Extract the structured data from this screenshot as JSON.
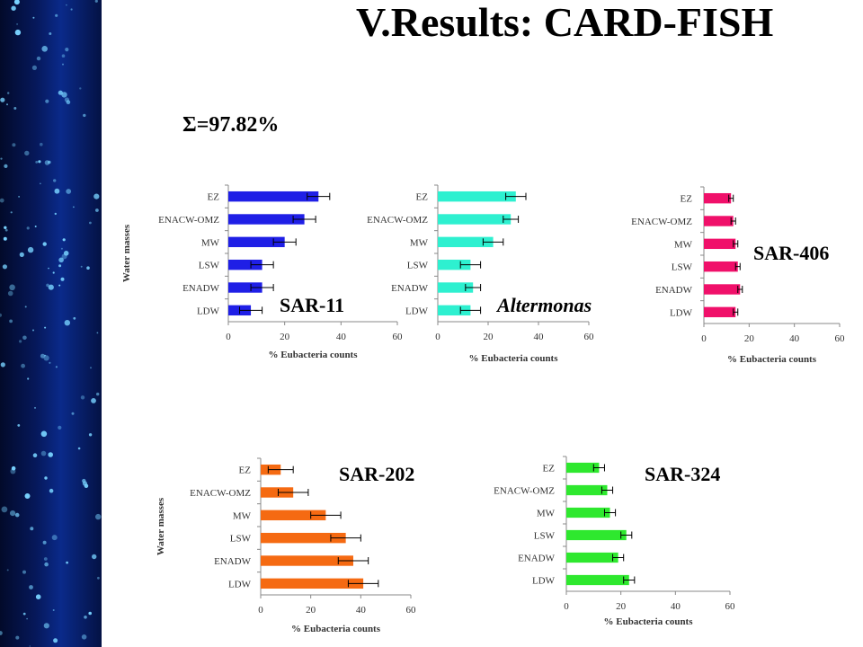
{
  "slide": {
    "title": "V.Results: CARD-FISH",
    "sum_label": "Σ=97.82%"
  },
  "chart_data": [
    {
      "type": "bar",
      "orientation": "horizontal",
      "name": "SAR-11",
      "categories": [
        "EZ",
        "ENACW-OMZ",
        "MW",
        "LSW",
        "ENADW",
        "LDW"
      ],
      "values": [
        32,
        27,
        20,
        12,
        12,
        8
      ],
      "errors": [
        4,
        4,
        4,
        4,
        4,
        4
      ],
      "xlabel": "% Eubacteria counts",
      "ylabel": "Water masses",
      "xlim": [
        0,
        60
      ],
      "xticks": [
        "0",
        "20",
        "40",
        "60"
      ],
      "color": "#1f1fe6",
      "label_color": "#000000",
      "label_italic": false
    },
    {
      "type": "bar",
      "orientation": "horizontal",
      "name": "Altermonas",
      "categories": [
        "EZ",
        "ENACW-OMZ",
        "MW",
        "LSW",
        "ENADW",
        "LDW"
      ],
      "values": [
        31,
        29,
        22,
        13,
        14,
        13
      ],
      "errors": [
        4,
        3,
        4,
        4,
        3,
        4
      ],
      "xlabel": "% Eubacteria counts",
      "ylabel": "",
      "xlim": [
        0,
        60
      ],
      "xticks": [
        "0",
        "20",
        "40",
        "60"
      ],
      "color": "#2ef0d0",
      "label_color": "#000000",
      "label_italic": true
    },
    {
      "type": "bar",
      "orientation": "horizontal",
      "name": "SAR-406",
      "categories": [
        "EZ",
        "ENACW-OMZ",
        "MW",
        "LSW",
        "ENADW",
        "LDW"
      ],
      "values": [
        12,
        13,
        14,
        15,
        16,
        14
      ],
      "errors": [
        1,
        1,
        1,
        1,
        1,
        1
      ],
      "xlabel": "% Eubacteria counts",
      "ylabel": "",
      "xlim": [
        0,
        60
      ],
      "xticks": [
        "0",
        "20",
        "40",
        "60"
      ],
      "color": "#f0106a",
      "label_color": "#000000",
      "label_italic": false
    },
    {
      "type": "bar",
      "orientation": "horizontal",
      "name": "SAR-202",
      "categories": [
        "EZ",
        "ENACW-OMZ",
        "MW",
        "LSW",
        "ENADW",
        "LDW"
      ],
      "values": [
        8,
        13,
        26,
        34,
        37,
        41
      ],
      "errors": [
        5,
        6,
        6,
        6,
        6,
        6
      ],
      "xlabel": "% Eubacteria counts",
      "ylabel": "Water masses",
      "xlim": [
        0,
        60
      ],
      "xticks": [
        "0",
        "20",
        "40",
        "60"
      ],
      "color": "#f56a12",
      "label_color": "#000000",
      "label_italic": false
    },
    {
      "type": "bar",
      "orientation": "horizontal",
      "name": "SAR-324",
      "categories": [
        "EZ",
        "ENACW-OMZ",
        "MW",
        "LSW",
        "ENADW",
        "LDW"
      ],
      "values": [
        12,
        15,
        16,
        22,
        19,
        23
      ],
      "errors": [
        2,
        2,
        2,
        2,
        2,
        2
      ],
      "xlabel": "% Eubacteria counts",
      "ylabel": "",
      "xlim": [
        0,
        60
      ],
      "xticks": [
        "0",
        "20",
        "40",
        "60"
      ],
      "color": "#2ee82e",
      "label_color": "#000000",
      "label_italic": false
    }
  ]
}
